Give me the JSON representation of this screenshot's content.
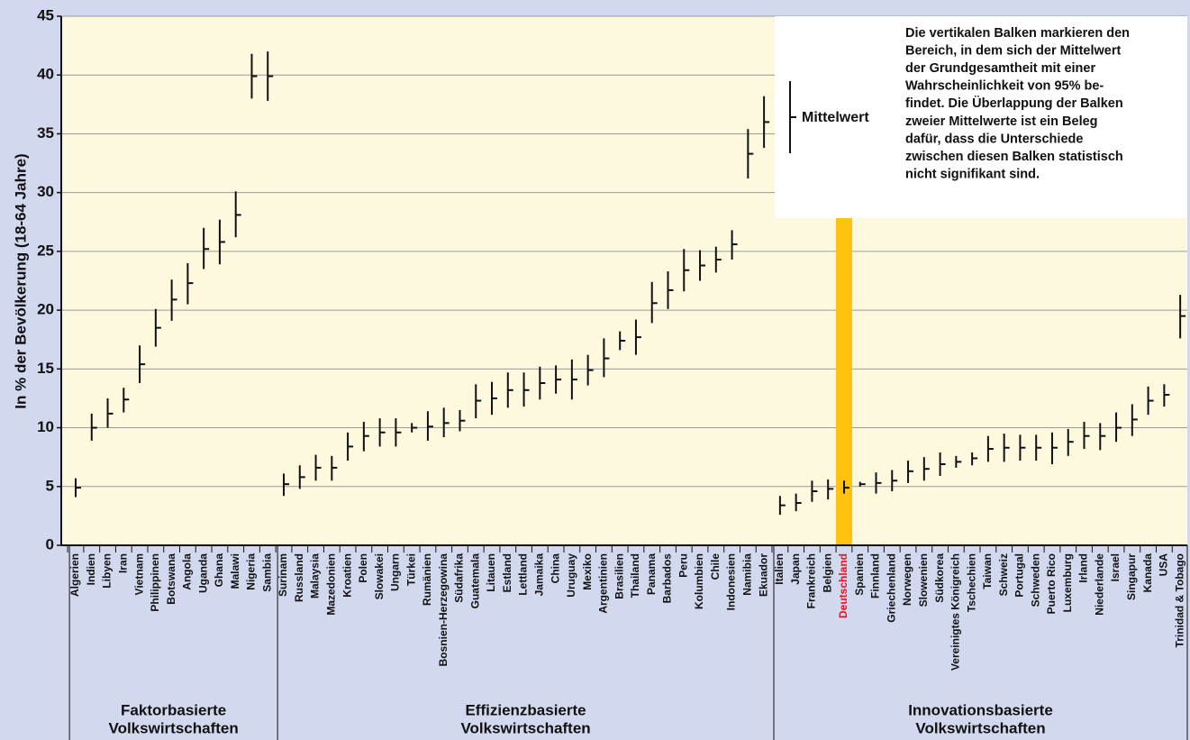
{
  "chart_data": {
    "type": "errorbar",
    "ylabel": "In % der Bevölkerung (18-64 Jahre)",
    "ylim": [
      0,
      45
    ],
    "yticks": [
      0,
      5,
      10,
      15,
      20,
      25,
      30,
      35,
      40,
      45
    ],
    "grid": true,
    "color": "#111111",
    "highlight": "Deutschland",
    "highlight_color": "#ffc20e",
    "highlight_text_color": "#e8141e",
    "legend_label": "Mittelwert",
    "note": [
      "Die vertikalen Balken markieren den",
      "Bereich, in dem sich der Mittelwert",
      "der Grundgesamtheit mit einer",
      "Wahrscheinlichkeit von 95% be-",
      "findet. Die Überlappung der Balken",
      "zweier Mittelwerte ist ein Beleg",
      "dafür, dass die Unterschiede",
      "zwischen diesen Balken statistisch",
      "nicht signifikant sind."
    ],
    "groups": [
      {
        "label": [
          "Faktorbasierte",
          "Volkswirtschaften"
        ],
        "categories": [
          "Algerien",
          "Indien",
          "Libyen",
          "Iran",
          "Vietnam",
          "Philippinen",
          "Botswana",
          "Angola",
          "Uganda",
          "Ghana",
          "Malawi",
          "Nigeria",
          "Sambia"
        ],
        "values": [
          4.9,
          10.0,
          11.2,
          12.4,
          15.4,
          18.5,
          20.9,
          22.3,
          25.2,
          25.8,
          28.1,
          39.9,
          39.9
        ],
        "low": [
          4.1,
          8.9,
          10.0,
          11.3,
          13.8,
          16.9,
          19.1,
          20.5,
          23.5,
          23.9,
          26.2,
          38.0,
          37.8
        ],
        "high": [
          5.7,
          11.2,
          12.5,
          13.4,
          17.0,
          20.1,
          22.6,
          24.0,
          27.0,
          27.7,
          30.1,
          41.8,
          42.0
        ]
      },
      {
        "label": [
          "Effizienzbasierte",
          "Volkswirtschaften"
        ],
        "categories": [
          "Surinam",
          "Russland",
          "Malaysia",
          "Mazedonien",
          "Kroatien",
          "Polen",
          "Slowakei",
          "Ungarn",
          "Türkei",
          "Rumänien",
          "Bosnien-Herzegowina",
          "Südafrika",
          "Guatemala",
          "Litauen",
          "Estland",
          "Lettland",
          "Jamaika",
          "China",
          "Uruguay",
          "Mexiko",
          "Argentinien",
          "Brasilien",
          "Thailand",
          "Panama",
          "Barbados",
          "Peru",
          "Kolumbien",
          "Chile",
          "Indonesien",
          "Namibia",
          "Ekuador"
        ],
        "values": [
          5.2,
          5.8,
          6.6,
          6.6,
          8.4,
          9.3,
          9.6,
          9.6,
          10.0,
          10.1,
          10.4,
          10.6,
          12.3,
          12.5,
          13.2,
          13.2,
          13.8,
          14.1,
          14.1,
          14.9,
          15.9,
          17.4,
          17.7,
          20.6,
          21.7,
          23.4,
          23.8,
          24.3,
          25.6,
          33.3,
          36.0
        ],
        "low": [
          4.2,
          4.8,
          5.5,
          5.5,
          7.2,
          8.0,
          8.4,
          8.4,
          9.6,
          8.9,
          9.2,
          9.7,
          10.8,
          11.1,
          11.7,
          11.8,
          12.4,
          12.9,
          12.4,
          13.6,
          14.3,
          16.6,
          16.2,
          18.9,
          20.1,
          21.6,
          22.5,
          23.2,
          24.3,
          31.2,
          33.8
        ],
        "high": [
          6.1,
          6.8,
          7.7,
          7.6,
          9.6,
          10.5,
          10.8,
          10.8,
          10.4,
          11.4,
          11.7,
          11.5,
          13.7,
          13.9,
          14.7,
          14.7,
          15.2,
          15.3,
          15.8,
          16.2,
          17.6,
          18.2,
          19.2,
          22.4,
          23.3,
          25.2,
          25.1,
          25.4,
          26.8,
          35.4,
          38.2
        ]
      },
      {
        "label": [
          "Innovationsbasierte",
          "Volkswirtschaften"
        ],
        "categories": [
          "Italien",
          "Japan",
          "Frankreich",
          "Belgien",
          "Deutschland",
          "Spanien",
          "Finnland",
          "Griechenland",
          "Norwegen",
          "Slowenien",
          "Südkorea",
          "Vereinigtes Königreich",
          "Tschechien",
          "Taiwan",
          "Schweiz",
          "Portugal",
          "Schweden",
          "Puerto Rico",
          "Luxemburg",
          "Irland",
          "Niederlande",
          "Israel",
          "Singapur",
          "Kanada",
          "USA",
          "Trinidad & Tobago"
        ],
        "values": [
          3.4,
          3.6,
          4.6,
          4.8,
          4.9,
          5.2,
          5.3,
          5.5,
          6.3,
          6.5,
          6.9,
          7.1,
          7.4,
          8.2,
          8.3,
          8.3,
          8.3,
          8.3,
          8.8,
          9.3,
          9.3,
          10.0,
          10.7,
          12.3,
          12.8,
          19.5
        ],
        "low": [
          2.6,
          2.9,
          3.7,
          3.9,
          4.4,
          5.0,
          4.4,
          4.6,
          5.3,
          5.5,
          5.9,
          6.6,
          6.8,
          7.1,
          7.1,
          7.2,
          7.2,
          6.9,
          7.6,
          8.2,
          8.1,
          8.8,
          9.3,
          11.1,
          11.8,
          17.6
        ],
        "high": [
          4.2,
          4.4,
          5.5,
          5.6,
          5.5,
          5.4,
          6.2,
          6.4,
          7.2,
          7.5,
          7.9,
          7.6,
          7.9,
          9.3,
          9.5,
          9.4,
          9.4,
          9.6,
          9.9,
          10.5,
          10.4,
          11.3,
          12.0,
          13.5,
          13.7,
          21.3
        ]
      }
    ]
  }
}
